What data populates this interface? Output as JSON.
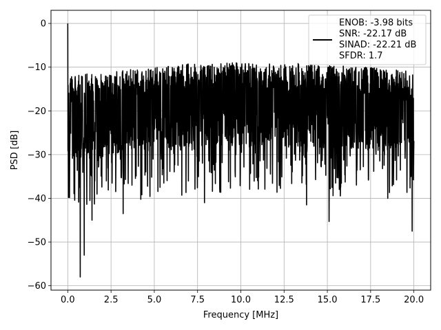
{
  "chart_data": {
    "type": "line",
    "xlabel": "Frequency [MHz]",
    "ylabel": "PSD [dB]",
    "xlim": [
      -0.97,
      20.97
    ],
    "ylim": [
      -61,
      3
    ],
    "x_ticks": [
      0.0,
      2.5,
      5.0,
      7.5,
      10.0,
      12.5,
      15.0,
      17.5,
      20.0
    ],
    "x_tick_labels": [
      "0.0",
      "2.5",
      "5.0",
      "7.5",
      "10.0",
      "12.5",
      "15.0",
      "17.5",
      "20.0"
    ],
    "y_ticks": [
      0,
      -10,
      -20,
      -30,
      -40,
      -50,
      -60
    ],
    "y_tick_labels": [
      "0",
      "−10",
      "−20",
      "−30",
      "−40",
      "−50",
      "−60"
    ],
    "grid": true,
    "legend_position": "top-right",
    "legend": {
      "line_color": "#000000",
      "entries": [
        "ENOB: -3.98 bits",
        "SNR: -22.17 dB",
        "SINAD: -22.21 dB",
        "SFDR: 1.7"
      ]
    },
    "series": [
      {
        "color": "#000000",
        "x_range": [
          0,
          20
        ],
        "noise_floor_points": [
          {
            "x": 0.0,
            "y": -21
          },
          {
            "x": 2.5,
            "y": -20
          },
          {
            "x": 5.0,
            "y": -19
          },
          {
            "x": 7.5,
            "y": -18
          },
          {
            "x": 10.0,
            "y": -18
          },
          {
            "x": 12.5,
            "y": -18
          },
          {
            "x": 15.0,
            "y": -18.5
          },
          {
            "x": 17.5,
            "y": -19
          },
          {
            "x": 20.0,
            "y": -20
          }
        ],
        "notable_points": [
          {
            "x": 0.0,
            "y": 0.0
          },
          {
            "x": 0.72,
            "y": -58
          },
          {
            "x": 0.95,
            "y": -53
          },
          {
            "x": 1.4,
            "y": -45
          },
          {
            "x": 3.2,
            "y": -43.5
          },
          {
            "x": 7.9,
            "y": -41
          },
          {
            "x": 13.8,
            "y": -41.5
          },
          {
            "x": 15.1,
            "y": -45.3
          },
          {
            "x": 19.9,
            "y": -47.5
          }
        ]
      }
    ]
  }
}
